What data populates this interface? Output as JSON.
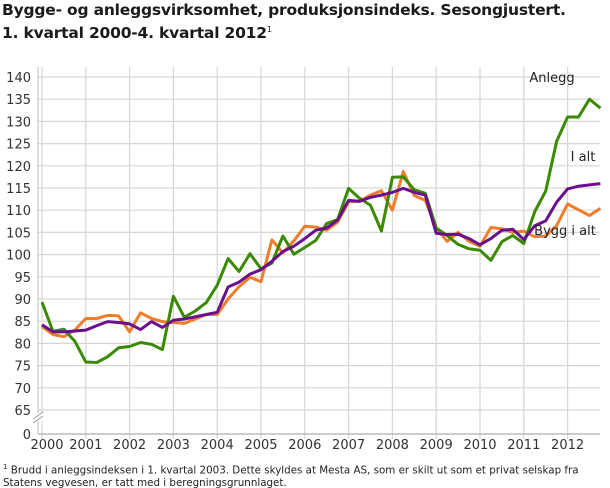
{
  "title_line1": "Bygge- og anleggsvirksomhet, produksjonsindeks. Sesongjustert.",
  "title_line2": "1. kvartal 2000-4. kvartal 2012",
  "title_footnote_mark": "1",
  "footnote_mark": "1",
  "footnote": "Brudd i anleggsindeksen i 1. kvartal 2003. Dette skyldes at Mesta AS, som er skilt ut som et privat selskap fra Statens vegvesen, er tatt med i beregningsgrunnlaget.",
  "chart_data": {
    "type": "line",
    "title": "Bygge- og anleggsvirksomhet, produksjonsindeks. Sesongjustert. 1. kvartal 2000-4. kvartal 2012",
    "xlabel": "",
    "ylabel": "",
    "x_ticks": [
      "2000",
      "2001",
      "2002",
      "2003",
      "2004",
      "2005",
      "2006",
      "2007",
      "2008",
      "2009",
      "2010",
      "2011",
      "2012"
    ],
    "y_ticks": [
      "0",
      "65",
      "70",
      "75",
      "80",
      "85",
      "90",
      "95",
      "100",
      "105",
      "110",
      "115",
      "120",
      "125",
      "130",
      "135",
      "140"
    ],
    "ylim": [
      60,
      140
    ],
    "y_axis_break": true,
    "grid": true,
    "x_start": "2000K1",
    "x_end": "2012K4",
    "frequency": "quarterly",
    "series": [
      {
        "name": "Anlegg",
        "color": "#3a8a00",
        "values": [
          89.3,
          82.7,
          83.2,
          80.5,
          75.8,
          75.7,
          77.0,
          79.0,
          79.3,
          80.2,
          79.8,
          78.6,
          90.6,
          85.9,
          87.3,
          89.2,
          93.1,
          99.1,
          96.2,
          100.2,
          96.8,
          98.1,
          104.2,
          100.1,
          101.6,
          103.2,
          107.0,
          107.9,
          114.9,
          112.7,
          111.1,
          105.3,
          117.4,
          117.5,
          114.6,
          113.8,
          106.0,
          104.3,
          102.3,
          101.3,
          101.0,
          98.7,
          102.9,
          104.3,
          102.5,
          109.7,
          114.3,
          125.5,
          131.0,
          131.0,
          135.0,
          133.0
        ]
      },
      {
        "name": "Bygg i alt",
        "color": "#f07d2a",
        "values": [
          83.8,
          82.0,
          81.5,
          83.0,
          85.6,
          85.6,
          86.3,
          86.2,
          82.6,
          86.9,
          85.6,
          84.9,
          84.7,
          84.5,
          85.5,
          86.5,
          86.5,
          90.0,
          92.8,
          94.9,
          93.9,
          103.3,
          100.4,
          103.1,
          106.4,
          106.2,
          105.5,
          107.3,
          111.9,
          112.0,
          113.4,
          114.4,
          110.0,
          118.7,
          113.3,
          112.2,
          106.0,
          103.0,
          105.0,
          103.0,
          101.9,
          106.1,
          105.8,
          105.0,
          105.3,
          104.0,
          104.2,
          106.5,
          111.4,
          110.1,
          108.8,
          110.4
        ]
      },
      {
        "name": "I alt",
        "color": "#6a0f8e",
        "values": [
          84.2,
          82.6,
          82.6,
          82.8,
          83.0,
          84.0,
          84.9,
          84.7,
          84.4,
          83.1,
          84.9,
          83.6,
          85.2,
          85.5,
          86.0,
          86.5,
          87.0,
          92.7,
          93.8,
          95.6,
          96.6,
          98.5,
          100.7,
          101.9,
          103.6,
          105.5,
          106.0,
          107.8,
          112.2,
          112.0,
          112.9,
          113.4,
          114.0,
          114.9,
          114.0,
          113.4,
          104.8,
          104.5,
          104.6,
          103.6,
          102.2,
          103.6,
          105.5,
          105.7,
          103.4,
          106.5,
          107.6,
          111.8,
          114.8,
          115.4,
          115.7,
          116.0
        ]
      }
    ]
  }
}
